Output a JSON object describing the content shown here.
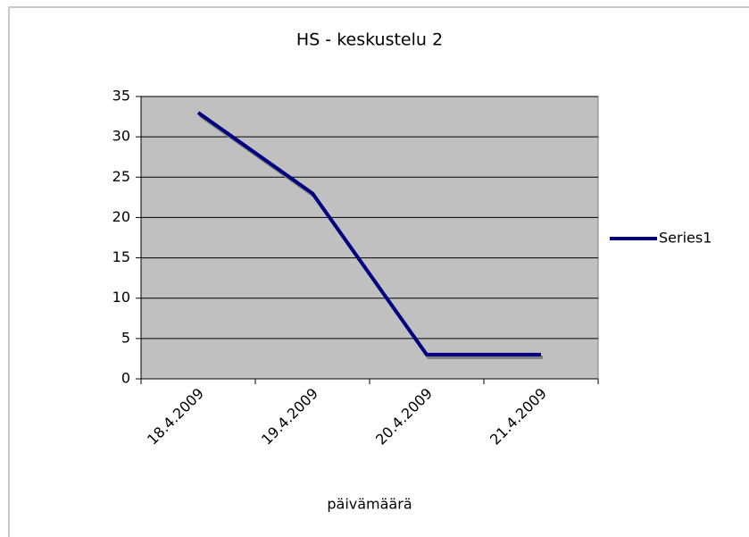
{
  "chart_data": {
    "type": "line",
    "title": "HS - keskustelu 2",
    "x_label": "päivämäärä",
    "categories": [
      "18.4.2009",
      "19.4.2009",
      "20.4.2009",
      "21.4.2009"
    ],
    "series": [
      {
        "name": "Series1",
        "color": "#000080",
        "values": [
          33,
          23,
          3,
          3
        ]
      }
    ],
    "ylim": [
      0,
      35
    ],
    "yticks": [
      0,
      5,
      10,
      15,
      20,
      25,
      30,
      35
    ],
    "grid": true,
    "legend": "right",
    "plot_background": "#c0c0c0"
  }
}
